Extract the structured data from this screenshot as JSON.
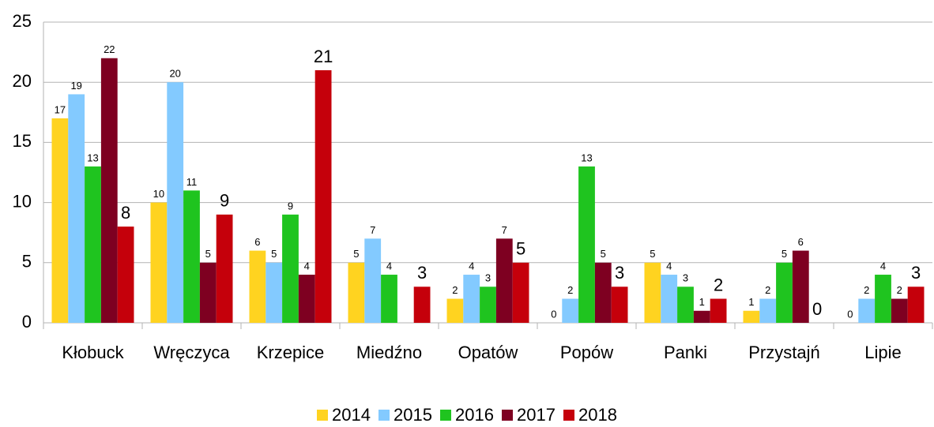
{
  "chart_data": {
    "type": "bar",
    "categories": [
      "Kłobuck",
      "Wręczyca",
      "Krzepice",
      "Miedźno",
      "Opatów",
      "Popów",
      "Panki",
      "Przystajń",
      "Lipie"
    ],
    "series": [
      {
        "name": "2014",
        "color": "#ffd320",
        "values": [
          17,
          10,
          6,
          5,
          2,
          0,
          5,
          1,
          0
        ]
      },
      {
        "name": "2015",
        "color": "#83caff",
        "values": [
          19,
          20,
          5,
          7,
          4,
          2,
          4,
          2,
          2
        ]
      },
      {
        "name": "2016",
        "color": "#1fc41f",
        "values": [
          13,
          11,
          9,
          4,
          3,
          13,
          3,
          5,
          4
        ]
      },
      {
        "name": "2017",
        "color": "#7e0021",
        "values": [
          22,
          5,
          4,
          null,
          7,
          5,
          1,
          6,
          2
        ]
      },
      {
        "name": "2018",
        "color": "#c5000b",
        "values": [
          8,
          9,
          21,
          3,
          5,
          3,
          2,
          0,
          3
        ]
      }
    ],
    "ylim": [
      0,
      25
    ],
    "yticks": [
      0,
      5,
      10,
      15,
      20,
      25
    ],
    "grid": true,
    "legend": "bottom"
  }
}
